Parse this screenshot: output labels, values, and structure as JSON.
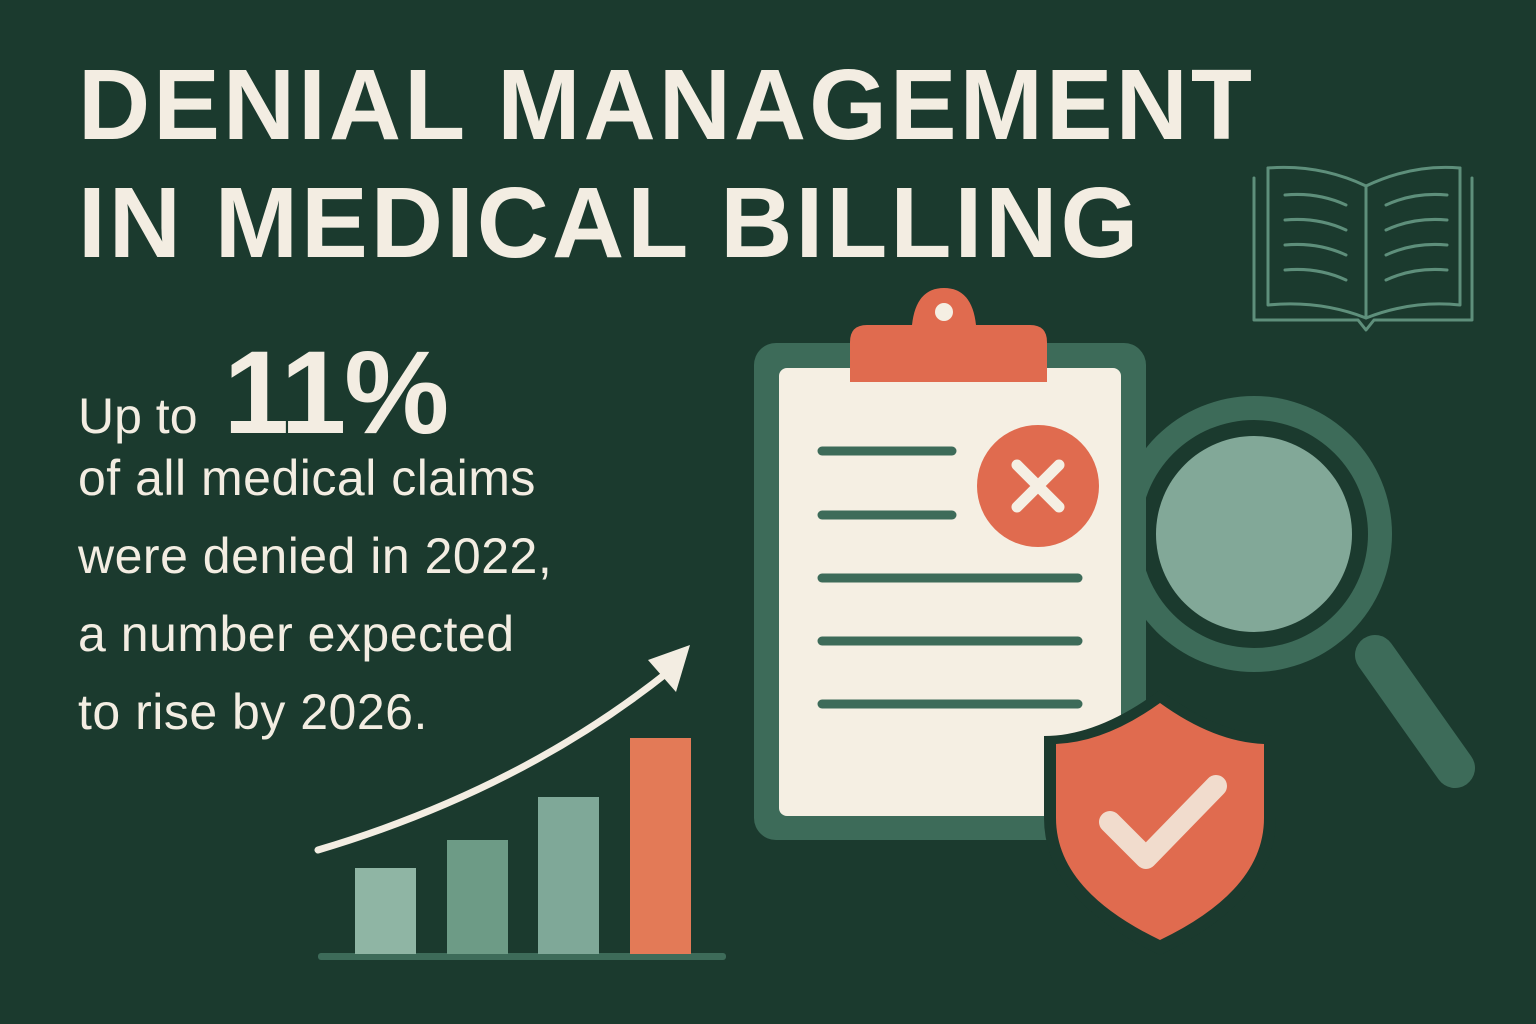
{
  "title": {
    "line1": "DENIAL MANAGEMENT",
    "line2": "IN MEDICAL BILLING"
  },
  "statistic": {
    "prefix": "Up to",
    "value": "11%",
    "lines": [
      "of all medical claims",
      "were denied in 2022,",
      "a number expected",
      "to rise by 2026."
    ]
  },
  "icons": [
    "book-icon",
    "clipboard-icon",
    "deny-x-icon",
    "magnifier-icon",
    "shield-check-icon",
    "trend-arrow-icon"
  ],
  "colors": {
    "background": "#1b3a2e",
    "text": "#f3ede2",
    "accent": "#e06b4f",
    "green_mid": "#3d6b59",
    "green_light": "#8fb5a4"
  }
}
